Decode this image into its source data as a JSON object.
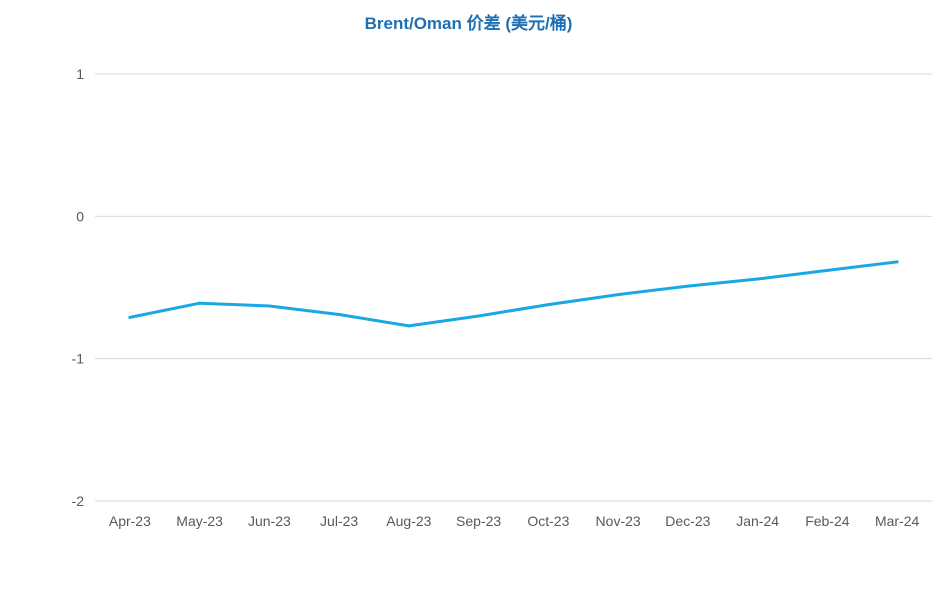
{
  "chart_data": {
    "type": "line",
    "title": "Brent/Oman 价差 (美元/桶)",
    "categories": [
      "Apr-23",
      "May-23",
      "Jun-23",
      "Jul-23",
      "Aug-23",
      "Sep-23",
      "Oct-23",
      "Nov-23",
      "Dec-23",
      "Jan-24",
      "Feb-24",
      "Mar-24"
    ],
    "series": [
      {
        "values": [
          -0.71,
          -0.61,
          -0.63,
          -0.69,
          -0.77,
          -0.7,
          -0.62,
          -0.55,
          -0.49,
          -0.44,
          -0.38,
          -0.32
        ]
      }
    ],
    "ylim": [
      -2,
      1
    ],
    "yticks": [
      "1",
      "0",
      "-1",
      "-2"
    ],
    "ytick_values": [
      1,
      0,
      -1,
      -2
    ],
    "grid": true,
    "line_color": "#1aa7e6",
    "title_color": "#1f6fb5",
    "gridline_color": "#d9d9d9"
  }
}
